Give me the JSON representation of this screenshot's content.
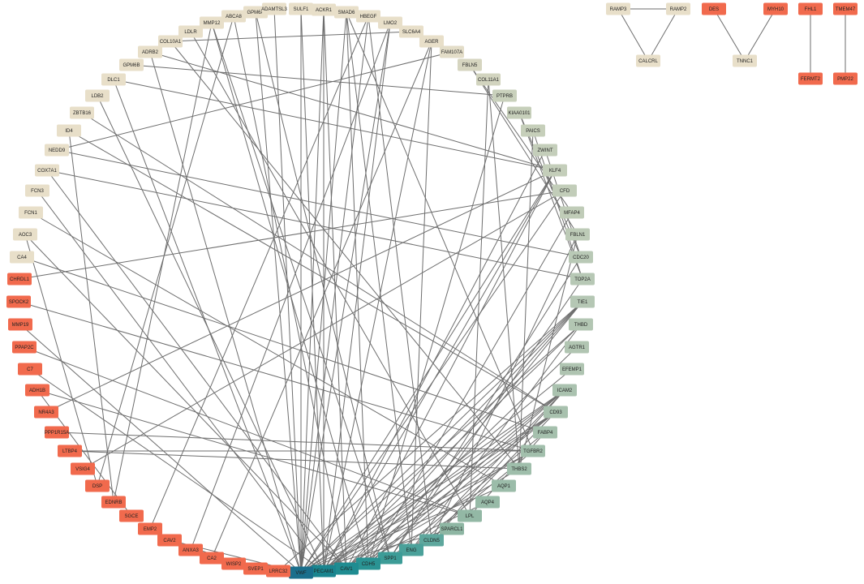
{
  "nodes": [
    {
      "id": "RAMP3",
      "color": "#e8dfc9"
    },
    {
      "id": "RAMP2",
      "color": "#e8dfc9"
    },
    {
      "id": "CALCRL",
      "color": "#e8dfc9"
    },
    {
      "id": "DES",
      "color": "#f16a4d"
    },
    {
      "id": "MYH10",
      "color": "#f16a4d"
    },
    {
      "id": "TNNC1",
      "color": "#e8dfc9"
    },
    {
      "id": "FHL1",
      "color": "#f16a4d"
    },
    {
      "id": "FERMT2",
      "color": "#f16a4d"
    },
    {
      "id": "TMEM47",
      "color": "#f16a4d"
    },
    {
      "id": "PMP22",
      "color": "#f16a4d"
    },
    {
      "id": "GPM6A",
      "color": "#e8dfc9"
    },
    {
      "id": "ADAMTSL3",
      "color": "#e8dfc9"
    },
    {
      "id": "SULF1",
      "color": "#e8dfc9"
    },
    {
      "id": "ACKR1",
      "color": "#e8dfc9"
    },
    {
      "id": "SMAD6",
      "color": "#e8dfc9"
    },
    {
      "id": "HBEGF",
      "color": "#e8dfc9"
    },
    {
      "id": "LMO2",
      "color": "#e8dfc9"
    },
    {
      "id": "SLC6A4",
      "color": "#e8dfc9"
    },
    {
      "id": "AGER",
      "color": "#e8dfc9"
    },
    {
      "id": "FAM107A",
      "color": "#e3ddc8"
    },
    {
      "id": "FBLN5",
      "color": "#d6d5c0"
    },
    {
      "id": "COL11A1",
      "color": "#d2d4bf"
    },
    {
      "id": "PTPRB",
      "color": "#c9d1bc"
    },
    {
      "id": "KIAA0101",
      "color": "#c6cfba"
    },
    {
      "id": "PAICS",
      "color": "#c6cfba"
    },
    {
      "id": "ZWINT",
      "color": "#c4ceba"
    },
    {
      "id": "KLF4",
      "color": "#c4ceba"
    },
    {
      "id": "CFD",
      "color": "#c2cdb9"
    },
    {
      "id": "MFAP4",
      "color": "#c0ccb8"
    },
    {
      "id": "FBLN1",
      "color": "#bdcbb7"
    },
    {
      "id": "CDC20",
      "color": "#b9c9b6"
    },
    {
      "id": "TOP2A",
      "color": "#b7c8b5"
    },
    {
      "id": "TIE1",
      "color": "#b5c7b4"
    },
    {
      "id": "THBD",
      "color": "#b3c6b3"
    },
    {
      "id": "AGTR1",
      "color": "#b1c5b2"
    },
    {
      "id": "EFEMP1",
      "color": "#afc4b1"
    },
    {
      "id": "ICAM2",
      "color": "#aac2af"
    },
    {
      "id": "CD93",
      "color": "#a8c1ae"
    },
    {
      "id": "FABP4",
      "color": "#a5c0ad"
    },
    {
      "id": "TGFBR2",
      "color": "#a2bfac"
    },
    {
      "id": "THBS2",
      "color": "#9fbeab"
    },
    {
      "id": "AQP1",
      "color": "#9bbca9"
    },
    {
      "id": "AQP4",
      "color": "#97baa7"
    },
    {
      "id": "LPL",
      "color": "#93b8a5"
    },
    {
      "id": "SPARCL1",
      "color": "#8eb6a3"
    },
    {
      "id": "CLDN5",
      "color": "#5ea79d"
    },
    {
      "id": "ENG",
      "color": "#4ba19a"
    },
    {
      "id": "SPP1",
      "color": "#3d9c97"
    },
    {
      "id": "CDH5",
      "color": "#2a9393"
    },
    {
      "id": "CAV1",
      "color": "#1f8c91"
    },
    {
      "id": "PECAM1",
      "color": "#1a858f"
    },
    {
      "id": "VWF",
      "color": "#1a6f8c"
    },
    {
      "id": "LRRC32",
      "color": "#f16a4d"
    },
    {
      "id": "SVEP1",
      "color": "#f16a4d"
    },
    {
      "id": "WISP2",
      "color": "#f16a4d"
    },
    {
      "id": "CA2",
      "color": "#f16a4d"
    },
    {
      "id": "ANXA3",
      "color": "#f16a4d"
    },
    {
      "id": "CAV2",
      "color": "#f16a4d"
    },
    {
      "id": "EMP2",
      "color": "#f16a4d"
    },
    {
      "id": "SGCE",
      "color": "#f16a4d"
    },
    {
      "id": "EDNRB",
      "color": "#f16a4d"
    },
    {
      "id": "DSP",
      "color": "#f16a4d"
    },
    {
      "id": "VSIG4",
      "color": "#f16a4d"
    },
    {
      "id": "LTBP4",
      "color": "#f16a4d"
    },
    {
      "id": "PPP1R15A",
      "color": "#f16a4d"
    },
    {
      "id": "NR4A3",
      "color": "#f16a4d"
    },
    {
      "id": "ADH1B",
      "color": "#f16a4d"
    },
    {
      "id": "C7",
      "color": "#f16a4d"
    },
    {
      "id": "PPAP2C",
      "color": "#f16a4d"
    },
    {
      "id": "MMP19",
      "color": "#f16a4d"
    },
    {
      "id": "SPOCK2",
      "color": "#f16a4d"
    },
    {
      "id": "CHRDL1",
      "color": "#f16a4d"
    },
    {
      "id": "CA4",
      "color": "#e8dfc9"
    },
    {
      "id": "AOC3",
      "color": "#e8dfc9"
    },
    {
      "id": "FCN1",
      "color": "#e8dfc9"
    },
    {
      "id": "FCN3",
      "color": "#e8dfc9"
    },
    {
      "id": "COX7A1",
      "color": "#e8dfc9"
    },
    {
      "id": "NEDD9",
      "color": "#e8dfc9"
    },
    {
      "id": "ID4",
      "color": "#e8dfc9"
    },
    {
      "id": "ZBTB16",
      "color": "#e8dfc9"
    },
    {
      "id": "LDB2",
      "color": "#e8dfc9"
    },
    {
      "id": "DLC1",
      "color": "#e8dfc9"
    },
    {
      "id": "GPM6B",
      "color": "#e8dfc9"
    },
    {
      "id": "ADRB2",
      "color": "#e8dfc9"
    },
    {
      "id": "COL10A1",
      "color": "#e8dfc9"
    },
    {
      "id": "LDLR",
      "color": "#e8dfc9"
    },
    {
      "id": "MMP12",
      "color": "#e8dfc9"
    },
    {
      "id": "ABCA8",
      "color": "#e8dfc9"
    }
  ],
  "edges": [
    [
      "RAMP3",
      "RAMP2"
    ],
    [
      "RAMP3",
      "CALCRL"
    ],
    [
      "RAMP2",
      "CALCRL"
    ],
    [
      "DES",
      "TNNC1"
    ],
    [
      "MYH10",
      "TNNC1"
    ],
    [
      "FHL1",
      "FERMT2"
    ],
    [
      "TMEM47",
      "PMP22"
    ],
    [
      "VWF",
      "GPM6A"
    ],
    [
      "VWF",
      "ADAMTSL3"
    ],
    [
      "VWF",
      "SULF1"
    ],
    [
      "VWF",
      "ACKR1"
    ],
    [
      "VWF",
      "SMAD6"
    ],
    [
      "VWF",
      "HBEGF"
    ],
    [
      "VWF",
      "LMO2"
    ],
    [
      "VWF",
      "KLF4"
    ],
    [
      "VWF",
      "TIE1"
    ],
    [
      "VWF",
      "CD93"
    ],
    [
      "VWF",
      "TGFBR2"
    ],
    [
      "VWF",
      "ICAM2"
    ],
    [
      "VWF",
      "THBD"
    ],
    [
      "VWF",
      "CAV2"
    ],
    [
      "VWF",
      "ADRB2"
    ],
    [
      "VWF",
      "DLC1"
    ],
    [
      "VWF",
      "MMP19"
    ],
    [
      "VWF",
      "CFD"
    ],
    [
      "VWF",
      "AQP1"
    ],
    [
      "VWF",
      "SPARCL1"
    ],
    [
      "PECAM1",
      "SULF1"
    ],
    [
      "PECAM1",
      "ACKR1"
    ],
    [
      "PECAM1",
      "LMO2"
    ],
    [
      "PECAM1",
      "AGER"
    ],
    [
      "PECAM1",
      "KLF4"
    ],
    [
      "PECAM1",
      "TIE1"
    ],
    [
      "PECAM1",
      "CD93"
    ],
    [
      "PECAM1",
      "ICAM2"
    ],
    [
      "PECAM1",
      "THBD"
    ],
    [
      "PECAM1",
      "EFEMP1"
    ],
    [
      "PECAM1",
      "TGFBR2"
    ],
    [
      "PECAM1",
      "ZWINT"
    ],
    [
      "PECAM1",
      "LDB2"
    ],
    [
      "PECAM1",
      "C7"
    ],
    [
      "PECAM1",
      "FCN3"
    ],
    [
      "CAV1",
      "ABCA8"
    ],
    [
      "CAV1",
      "ACKR1"
    ],
    [
      "CAV1",
      "KLF4"
    ],
    [
      "CAV1",
      "TIE1"
    ],
    [
      "CAV1",
      "CD93"
    ],
    [
      "CAV1",
      "ICAM2"
    ],
    [
      "CAV1",
      "AGTR1"
    ],
    [
      "CAV1",
      "THBS2"
    ],
    [
      "CAV1",
      "COX7A1"
    ],
    [
      "CAV1",
      "AOC3"
    ],
    [
      "CDH5",
      "SMAD6"
    ],
    [
      "CDH5",
      "TIE1"
    ],
    [
      "CDH5",
      "ICAM2"
    ],
    [
      "CDH5",
      "CD93"
    ],
    [
      "CDH5",
      "PTPRB"
    ],
    [
      "CDH5",
      "MFAP4"
    ],
    [
      "CDH5",
      "MMP12"
    ],
    [
      "SPP1",
      "TOP2A"
    ],
    [
      "SPP1",
      "CDC20"
    ],
    [
      "SPP1",
      "MMP12"
    ],
    [
      "SPP1",
      "GPM6A"
    ],
    [
      "SPP1",
      "FABP4"
    ],
    [
      "ENG",
      "TGFBR2"
    ],
    [
      "ENG",
      "ICAM2"
    ],
    [
      "ENG",
      "SMAD6"
    ],
    [
      "ENG",
      "AGER"
    ],
    [
      "ENG",
      "THBD"
    ],
    [
      "CLDN5",
      "HBEGF"
    ],
    [
      "CLDN5",
      "ICAM2"
    ],
    [
      "CLDN5",
      "CD93"
    ],
    [
      "CLDN5",
      "FBLN1"
    ],
    [
      "LPL",
      "COL11A1"
    ],
    [
      "LPL",
      "FABP4"
    ],
    [
      "LPL",
      "ADH1B"
    ],
    [
      "LPL",
      "PPAP2C"
    ],
    [
      "LPL",
      "LDLR"
    ],
    [
      "AQP4",
      "CAV1"
    ],
    [
      "AQP1",
      "FCN1"
    ],
    [
      "THBS2",
      "COL11A1"
    ],
    [
      "THBS2",
      "COL10A1"
    ],
    [
      "THBS2",
      "FBLN1"
    ],
    [
      "THBS2",
      "LTBP4"
    ],
    [
      "THBS2",
      "PAICS"
    ],
    [
      "TGFBR2",
      "SMAD6"
    ],
    [
      "TGFBR2",
      "LTBP4"
    ],
    [
      "TGFBR2",
      "PPP1R15A"
    ],
    [
      "TGFBR2",
      "SPOCK2"
    ],
    [
      "CD93",
      "ZBTB16"
    ],
    [
      "CD93",
      "ID4"
    ],
    [
      "FABP4",
      "CA4"
    ],
    [
      "CDC20",
      "NEDD9"
    ],
    [
      "CDC20",
      "ZWINT"
    ],
    [
      "CDC20",
      "KIAA0101"
    ],
    [
      "TOP2A",
      "PAICS"
    ],
    [
      "TOP2A",
      "COX7A1"
    ],
    [
      "TOP2A",
      "KIAA0101"
    ],
    [
      "CFD",
      "VSIG4"
    ],
    [
      "CFD",
      "CHRDL1"
    ],
    [
      "KLF4",
      "DLC1"
    ],
    [
      "KLF4",
      "ADRB2"
    ],
    [
      "KLF4",
      "NR4A3"
    ],
    [
      "MFAP4",
      "FBLN5"
    ],
    [
      "FBLN1",
      "FBLN5"
    ],
    [
      "CAV2",
      "WISP2"
    ],
    [
      "CAV2",
      "SVEP1"
    ],
    [
      "TIE1",
      "LRRC32"
    ],
    [
      "PTPRB",
      "GPM6B"
    ],
    [
      "AGER",
      "CA2"
    ],
    [
      "SLC6A4",
      "COL10A1"
    ],
    [
      "FAM107A",
      "NEDD9"
    ],
    [
      "HBEGF",
      "EMP2"
    ],
    [
      "LMO2",
      "ANXA3"
    ],
    [
      "EDNRB",
      "ID4"
    ],
    [
      "SGCE",
      "ADH1B"
    ],
    [
      "DSP",
      "AOC3"
    ],
    [
      "ABCA8",
      "DSP"
    ],
    [
      "MMP12",
      "EDNRB"
    ]
  ]
}
